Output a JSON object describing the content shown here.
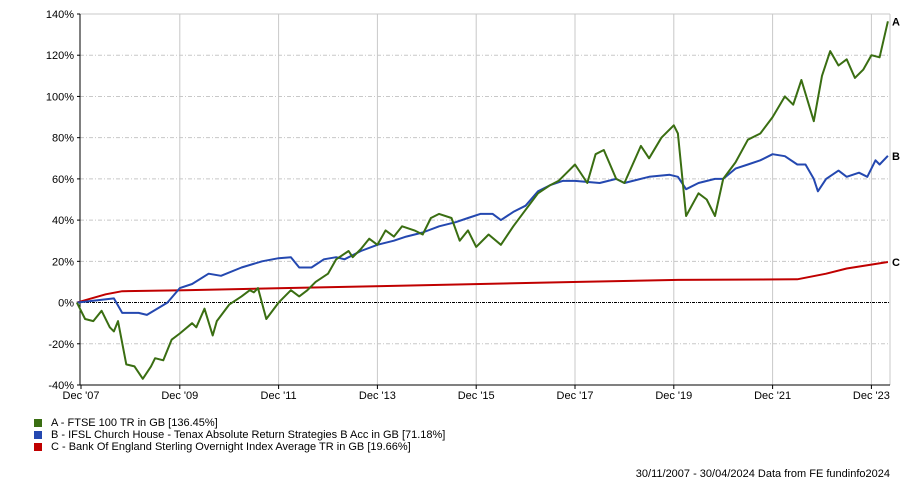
{
  "chart_data": {
    "type": "line",
    "title": "",
    "xlabel": "",
    "ylabel": "",
    "ylim": [
      -40,
      140
    ],
    "y_ticks": [
      "-40%",
      "-20%",
      "0%",
      "20%",
      "40%",
      "60%",
      "80%",
      "100%",
      "120%",
      "140%"
    ],
    "y_tick_values": [
      -40,
      -20,
      0,
      20,
      40,
      60,
      80,
      100,
      120,
      140
    ],
    "x_ticks": [
      "Dec '07",
      "Dec '09",
      "Dec '11",
      "Dec '13",
      "Dec '15",
      "Dec '17",
      "Dec '19",
      "Dec '21",
      "Dec '23"
    ],
    "x_tick_dates": [
      "2007-12",
      "2009-12",
      "2011-12",
      "2013-12",
      "2015-12",
      "2017-12",
      "2019-12",
      "2021-12",
      "2023-12"
    ],
    "xlim": [
      "2007-11-30",
      "2024-04-30"
    ],
    "grid": true,
    "legend_placement": "bottom-left",
    "series": [
      {
        "name": "A - FTSE 100 TR in GB [136.45%]",
        "end_label": "A",
        "color": "#3a6e12",
        "points": [
          [
            "2007-11",
            0
          ],
          [
            "2008-01",
            -8
          ],
          [
            "2008-03",
            -9
          ],
          [
            "2008-05",
            -4
          ],
          [
            "2008-07",
            -12
          ],
          [
            "2008-08",
            -14
          ],
          [
            "2008-09",
            -9
          ],
          [
            "2008-11",
            -30
          ],
          [
            "2009-01",
            -31
          ],
          [
            "2009-03",
            -37
          ],
          [
            "2009-05",
            -31
          ],
          [
            "2009-06",
            -27
          ],
          [
            "2009-08",
            -28
          ],
          [
            "2009-10",
            -18
          ],
          [
            "2009-12",
            -15
          ],
          [
            "2010-03",
            -10
          ],
          [
            "2010-04",
            -12
          ],
          [
            "2010-06",
            -3
          ],
          [
            "2010-08",
            -16
          ],
          [
            "2010-09",
            -9
          ],
          [
            "2010-12",
            -1
          ],
          [
            "2011-03",
            3
          ],
          [
            "2011-05",
            6
          ],
          [
            "2011-06",
            5
          ],
          [
            "2011-07",
            7
          ],
          [
            "2011-09",
            -8
          ],
          [
            "2011-12",
            0
          ],
          [
            "2012-03",
            6
          ],
          [
            "2012-05",
            3
          ],
          [
            "2012-07",
            6
          ],
          [
            "2012-09",
            10
          ],
          [
            "2012-12",
            14
          ],
          [
            "2013-02",
            21
          ],
          [
            "2013-05",
            25
          ],
          [
            "2013-06",
            22
          ],
          [
            "2013-08",
            26
          ],
          [
            "2013-10",
            31
          ],
          [
            "2013-12",
            28
          ],
          [
            "2014-02",
            35
          ],
          [
            "2014-04",
            32
          ],
          [
            "2014-06",
            37
          ],
          [
            "2014-09",
            35
          ],
          [
            "2014-11",
            33
          ],
          [
            "2015-01",
            41
          ],
          [
            "2015-03",
            43
          ],
          [
            "2015-06",
            41
          ],
          [
            "2015-08",
            30
          ],
          [
            "2015-10",
            35
          ],
          [
            "2015-12",
            27
          ],
          [
            "2016-03",
            33
          ],
          [
            "2016-06",
            28
          ],
          [
            "2016-09",
            37
          ],
          [
            "2016-12",
            45
          ],
          [
            "2017-03",
            53
          ],
          [
            "2017-06",
            57
          ],
          [
            "2017-08",
            59
          ],
          [
            "2017-10",
            63
          ],
          [
            "2017-12",
            67
          ],
          [
            "2018-03",
            58
          ],
          [
            "2018-05",
            72
          ],
          [
            "2018-07",
            74
          ],
          [
            "2018-10",
            60
          ],
          [
            "2018-12",
            58
          ],
          [
            "2019-04",
            76
          ],
          [
            "2019-06",
            70
          ],
          [
            "2019-09",
            80
          ],
          [
            "2019-12",
            86
          ],
          [
            "2020-01",
            82
          ],
          [
            "2020-03",
            42
          ],
          [
            "2020-06",
            53
          ],
          [
            "2020-08",
            50
          ],
          [
            "2020-10",
            42
          ],
          [
            "2020-12",
            60
          ],
          [
            "2021-03",
            68
          ],
          [
            "2021-06",
            79
          ],
          [
            "2021-09",
            82
          ],
          [
            "2021-12",
            90
          ],
          [
            "2022-03",
            100
          ],
          [
            "2022-05",
            96
          ],
          [
            "2022-07",
            108
          ],
          [
            "2022-10",
            88
          ],
          [
            "2022-12",
            110
          ],
          [
            "2023-02",
            122
          ],
          [
            "2023-04",
            115
          ],
          [
            "2023-06",
            118
          ],
          [
            "2023-08",
            109
          ],
          [
            "2023-10",
            113
          ],
          [
            "2023-12",
            120
          ],
          [
            "2024-02",
            119
          ],
          [
            "2024-04",
            136.45
          ]
        ]
      },
      {
        "name": "B - IFSL Church House - Tenax Absolute Return Strategies B Acc in GB [71.18%]",
        "end_label": "B",
        "color": "#2448b0",
        "points": [
          [
            "2007-11",
            0
          ],
          [
            "2008-08",
            2
          ],
          [
            "2008-10",
            -5
          ],
          [
            "2009-02",
            -5
          ],
          [
            "2009-04",
            -6
          ],
          [
            "2009-09",
            0
          ],
          [
            "2009-12",
            7
          ],
          [
            "2010-03",
            9
          ],
          [
            "2010-07",
            14
          ],
          [
            "2010-10",
            13
          ],
          [
            "2011-03",
            17
          ],
          [
            "2011-08",
            20
          ],
          [
            "2011-12",
            21.5
          ],
          [
            "2012-03",
            22
          ],
          [
            "2012-05",
            17
          ],
          [
            "2012-08",
            17
          ],
          [
            "2012-11",
            21
          ],
          [
            "2013-02",
            22
          ],
          [
            "2013-04",
            21
          ],
          [
            "2013-08",
            25
          ],
          [
            "2013-12",
            28
          ],
          [
            "2014-04",
            30
          ],
          [
            "2014-07",
            32
          ],
          [
            "2014-11",
            34
          ],
          [
            "2015-03",
            37
          ],
          [
            "2015-07",
            39
          ],
          [
            "2015-10",
            41
          ],
          [
            "2016-01",
            43
          ],
          [
            "2016-04",
            43
          ],
          [
            "2016-06",
            40
          ],
          [
            "2016-09",
            44
          ],
          [
            "2016-12",
            47
          ],
          [
            "2017-03",
            54
          ],
          [
            "2017-06",
            57
          ],
          [
            "2017-09",
            59
          ],
          [
            "2017-12",
            59
          ],
          [
            "2018-06",
            58
          ],
          [
            "2018-10",
            60
          ],
          [
            "2018-12",
            58
          ],
          [
            "2019-06",
            61
          ],
          [
            "2019-11",
            62
          ],
          [
            "2020-01",
            61
          ],
          [
            "2020-03",
            55
          ],
          [
            "2020-06",
            58
          ],
          [
            "2020-10",
            60
          ],
          [
            "2020-12",
            60
          ],
          [
            "2021-03",
            65
          ],
          [
            "2021-06",
            67
          ],
          [
            "2021-09",
            69
          ],
          [
            "2021-12",
            72
          ],
          [
            "2022-03",
            71
          ],
          [
            "2022-06",
            67
          ],
          [
            "2022-08",
            67
          ],
          [
            "2022-10",
            60
          ],
          [
            "2022-11",
            54
          ],
          [
            "2023-01",
            60
          ],
          [
            "2023-04",
            64
          ],
          [
            "2023-06",
            61
          ],
          [
            "2023-09",
            63
          ],
          [
            "2023-11",
            61
          ],
          [
            "2024-01",
            69
          ],
          [
            "2024-02",
            67
          ],
          [
            "2024-04",
            71.18
          ]
        ]
      },
      {
        "name": "C - Bank Of England Sterling Overnight Index Average TR in GB [19.66%]",
        "end_label": "C",
        "color": "#c00000",
        "points": [
          [
            "2007-11",
            0
          ],
          [
            "2008-06",
            4
          ],
          [
            "2008-10",
            5.5
          ],
          [
            "2010-01",
            6
          ],
          [
            "2012-01",
            7
          ],
          [
            "2014-01",
            8
          ],
          [
            "2016-01",
            9
          ],
          [
            "2018-01",
            10
          ],
          [
            "2020-01",
            11
          ],
          [
            "2022-06",
            11.3
          ],
          [
            "2023-01",
            14
          ],
          [
            "2023-06",
            16.5
          ],
          [
            "2024-04",
            19.66
          ]
        ]
      }
    ]
  },
  "footer": {
    "text": "30/11/2007 - 30/04/2024 Data from FE fundinfo2024"
  }
}
